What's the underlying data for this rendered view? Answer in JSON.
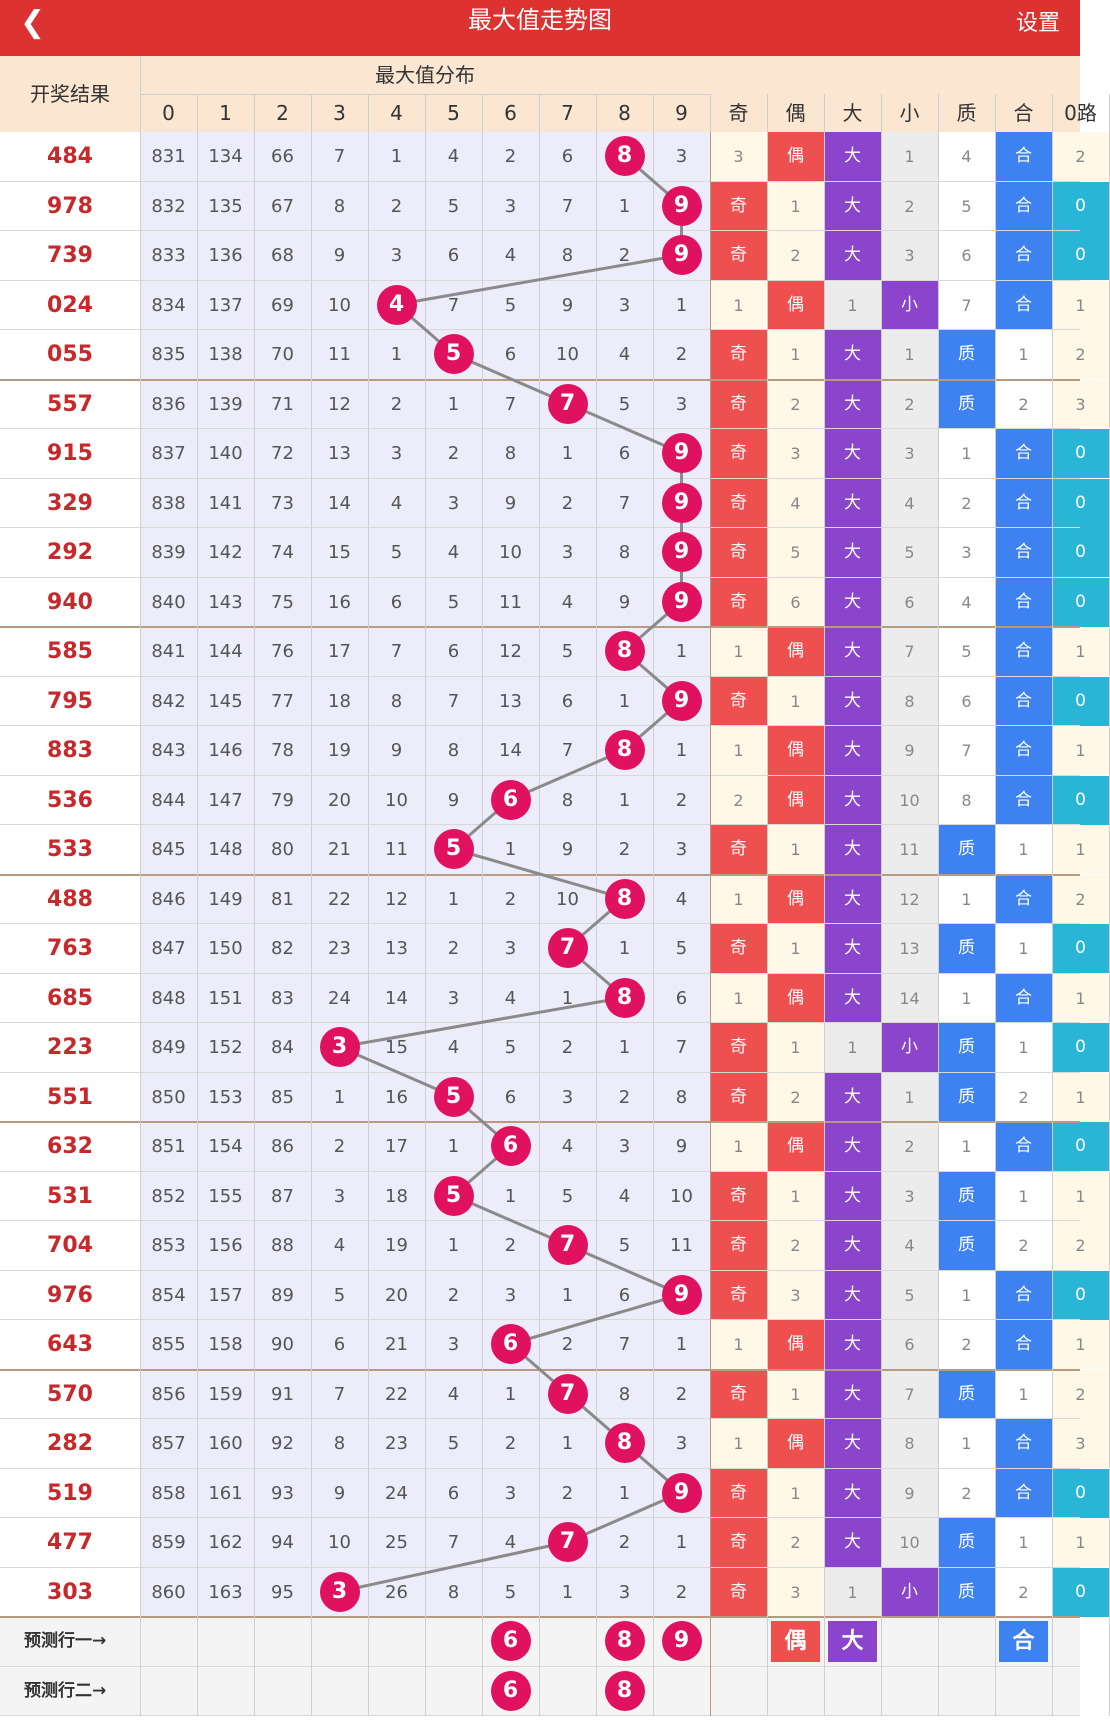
{
  "header": {
    "back_icon": "chevron-left-icon",
    "title": "最大值走势图",
    "settings_label": "设置"
  },
  "table_header": {
    "result_col": "开奖结果",
    "dist_group": "最大值分布",
    "digits": [
      "0",
      "1",
      "2",
      "3",
      "4",
      "5",
      "6",
      "7",
      "8",
      "9"
    ],
    "stat_cols": [
      "奇",
      "偶",
      "大",
      "小",
      "质",
      "合",
      "0路"
    ]
  },
  "rows": [
    {
      "result": "484",
      "dist": [
        831,
        134,
        66,
        7,
        1,
        4,
        2,
        6,
        8,
        3
      ],
      "max": 8,
      "stats": [
        "3",
        "偶",
        "大",
        "1",
        "4",
        "合",
        "2"
      ]
    },
    {
      "result": "978",
      "dist": [
        832,
        135,
        67,
        8,
        2,
        5,
        3,
        7,
        1,
        9
      ],
      "max": 9,
      "stats": [
        "奇",
        "1",
        "大",
        "2",
        "5",
        "合",
        "0"
      ]
    },
    {
      "result": "739",
      "dist": [
        833,
        136,
        68,
        9,
        3,
        6,
        4,
        8,
        2,
        9
      ],
      "max": 9,
      "stats": [
        "奇",
        "2",
        "大",
        "3",
        "6",
        "合",
        "0"
      ]
    },
    {
      "result": "024",
      "dist": [
        834,
        137,
        69,
        10,
        4,
        7,
        5,
        9,
        3,
        1
      ],
      "max": 4,
      "stats": [
        "1",
        "偶",
        "1",
        "小",
        "7",
        "合",
        "1"
      ]
    },
    {
      "result": "055",
      "dist": [
        835,
        138,
        70,
        11,
        1,
        5,
        6,
        10,
        4,
        2
      ],
      "max": 5,
      "stats": [
        "奇",
        "1",
        "大",
        "1",
        "质",
        "1",
        "2"
      ]
    },
    {
      "result": "557",
      "dist": [
        836,
        139,
        71,
        12,
        2,
        1,
        7,
        7,
        5,
        3
      ],
      "max": 7,
      "stats": [
        "奇",
        "2",
        "大",
        "2",
        "质",
        "2",
        "3"
      ]
    },
    {
      "result": "915",
      "dist": [
        837,
        140,
        72,
        13,
        3,
        2,
        8,
        1,
        6,
        9
      ],
      "max": 9,
      "stats": [
        "奇",
        "3",
        "大",
        "3",
        "1",
        "合",
        "0"
      ]
    },
    {
      "result": "329",
      "dist": [
        838,
        141,
        73,
        14,
        4,
        3,
        9,
        2,
        7,
        9
      ],
      "max": 9,
      "stats": [
        "奇",
        "4",
        "大",
        "4",
        "2",
        "合",
        "0"
      ]
    },
    {
      "result": "292",
      "dist": [
        839,
        142,
        74,
        15,
        5,
        4,
        10,
        3,
        8,
        9
      ],
      "max": 9,
      "stats": [
        "奇",
        "5",
        "大",
        "5",
        "3",
        "合",
        "0"
      ]
    },
    {
      "result": "940",
      "dist": [
        840,
        143,
        75,
        16,
        6,
        5,
        11,
        4,
        9,
        9
      ],
      "max": 9,
      "stats": [
        "奇",
        "6",
        "大",
        "6",
        "4",
        "合",
        "0"
      ]
    },
    {
      "result": "585",
      "dist": [
        841,
        144,
        76,
        17,
        7,
        6,
        12,
        5,
        8,
        1
      ],
      "max": 8,
      "stats": [
        "1",
        "偶",
        "大",
        "7",
        "5",
        "合",
        "1"
      ]
    },
    {
      "result": "795",
      "dist": [
        842,
        145,
        77,
        18,
        8,
        7,
        13,
        6,
        1,
        9
      ],
      "max": 9,
      "stats": [
        "奇",
        "1",
        "大",
        "8",
        "6",
        "合",
        "0"
      ]
    },
    {
      "result": "883",
      "dist": [
        843,
        146,
        78,
        19,
        9,
        8,
        14,
        7,
        8,
        1
      ],
      "max": 8,
      "stats": [
        "1",
        "偶",
        "大",
        "9",
        "7",
        "合",
        "1"
      ]
    },
    {
      "result": "536",
      "dist": [
        844,
        147,
        79,
        20,
        10,
        9,
        6,
        8,
        1,
        2
      ],
      "max": 6,
      "stats": [
        "2",
        "偶",
        "大",
        "10",
        "8",
        "合",
        "0"
      ]
    },
    {
      "result": "533",
      "dist": [
        845,
        148,
        80,
        21,
        11,
        5,
        1,
        9,
        2,
        3
      ],
      "max": 5,
      "stats": [
        "奇",
        "1",
        "大",
        "11",
        "质",
        "1",
        "1"
      ]
    },
    {
      "result": "488",
      "dist": [
        846,
        149,
        81,
        22,
        12,
        1,
        2,
        10,
        8,
        4
      ],
      "max": 8,
      "stats": [
        "1",
        "偶",
        "大",
        "12",
        "1",
        "合",
        "2"
      ]
    },
    {
      "result": "763",
      "dist": [
        847,
        150,
        82,
        23,
        13,
        2,
        3,
        7,
        1,
        5
      ],
      "max": 7,
      "stats": [
        "奇",
        "1",
        "大",
        "13",
        "质",
        "1",
        "0"
      ]
    },
    {
      "result": "685",
      "dist": [
        848,
        151,
        83,
        24,
        14,
        3,
        4,
        1,
        8,
        6
      ],
      "max": 8,
      "stats": [
        "1",
        "偶",
        "大",
        "14",
        "1",
        "合",
        "1"
      ]
    },
    {
      "result": "223",
      "dist": [
        849,
        152,
        84,
        3,
        15,
        4,
        5,
        2,
        1,
        7
      ],
      "max": 3,
      "stats": [
        "奇",
        "1",
        "1",
        "小",
        "质",
        "1",
        "0"
      ]
    },
    {
      "result": "551",
      "dist": [
        850,
        153,
        85,
        1,
        16,
        5,
        6,
        3,
        2,
        8
      ],
      "max": 5,
      "stats": [
        "奇",
        "2",
        "大",
        "1",
        "质",
        "2",
        "1"
      ]
    },
    {
      "result": "632",
      "dist": [
        851,
        154,
        86,
        2,
        17,
        1,
        6,
        4,
        3,
        9
      ],
      "max": 6,
      "stats": [
        "1",
        "偶",
        "大",
        "2",
        "1",
        "合",
        "0"
      ]
    },
    {
      "result": "531",
      "dist": [
        852,
        155,
        87,
        3,
        18,
        5,
        1,
        5,
        4,
        10
      ],
      "max": 5,
      "stats": [
        "奇",
        "1",
        "大",
        "3",
        "质",
        "1",
        "1"
      ]
    },
    {
      "result": "704",
      "dist": [
        853,
        156,
        88,
        4,
        19,
        1,
        2,
        7,
        5,
        11
      ],
      "max": 7,
      "stats": [
        "奇",
        "2",
        "大",
        "4",
        "质",
        "2",
        "2"
      ]
    },
    {
      "result": "976",
      "dist": [
        854,
        157,
        89,
        5,
        20,
        2,
        3,
        1,
        6,
        9
      ],
      "max": 9,
      "stats": [
        "奇",
        "3",
        "大",
        "5",
        "1",
        "合",
        "0"
      ]
    },
    {
      "result": "643",
      "dist": [
        855,
        158,
        90,
        6,
        21,
        3,
        6,
        2,
        7,
        1
      ],
      "max": 6,
      "stats": [
        "1",
        "偶",
        "大",
        "6",
        "2",
        "合",
        "1"
      ]
    },
    {
      "result": "570",
      "dist": [
        856,
        159,
        91,
        7,
        22,
        4,
        1,
        7,
        8,
        2
      ],
      "max": 7,
      "stats": [
        "奇",
        "1",
        "大",
        "7",
        "质",
        "1",
        "2"
      ]
    },
    {
      "result": "282",
      "dist": [
        857,
        160,
        92,
        8,
        23,
        5,
        2,
        1,
        8,
        3
      ],
      "max": 8,
      "stats": [
        "1",
        "偶",
        "大",
        "8",
        "1",
        "合",
        "3"
      ]
    },
    {
      "result": "519",
      "dist": [
        858,
        161,
        93,
        9,
        24,
        6,
        3,
        2,
        1,
        9
      ],
      "max": 9,
      "stats": [
        "奇",
        "1",
        "大",
        "9",
        "2",
        "合",
        "0"
      ]
    },
    {
      "result": "477",
      "dist": [
        859,
        162,
        94,
        10,
        25,
        7,
        4,
        7,
        2,
        1
      ],
      "max": 7,
      "stats": [
        "奇",
        "2",
        "大",
        "10",
        "质",
        "1",
        "1"
      ]
    },
    {
      "result": "303",
      "dist": [
        860,
        163,
        95,
        3,
        26,
        8,
        5,
        1,
        3,
        2
      ],
      "max": 3,
      "stats": [
        "奇",
        "3",
        "1",
        "小",
        "质",
        "2",
        "0"
      ]
    }
  ],
  "predictions": [
    {
      "label": "预测行一→",
      "balls": [
        "6",
        "8",
        "9"
      ],
      "balls_at": [
        6,
        8,
        9
      ],
      "stats": [
        "",
        "偶",
        "大",
        "",
        "",
        "合",
        ""
      ]
    },
    {
      "label": "预测行二→",
      "balls": [
        "6",
        "8"
      ],
      "balls_at": [
        6,
        8
      ],
      "stats": [
        "",
        "",
        "",
        "",
        "",
        "",
        ""
      ]
    }
  ],
  "colors": {
    "bar": "#dc3232",
    "ball": "#e0115f",
    "odd": "#ee4f4f",
    "even": "#ee4f4f",
    "big": "#8b44cc",
    "small": "#8b44cc",
    "prime": "#3d82f0",
    "composite": "#3d82f0",
    "route": "#29b6d6",
    "header_bg": "#fbe6d1",
    "dist_bg": "#ececfb"
  }
}
